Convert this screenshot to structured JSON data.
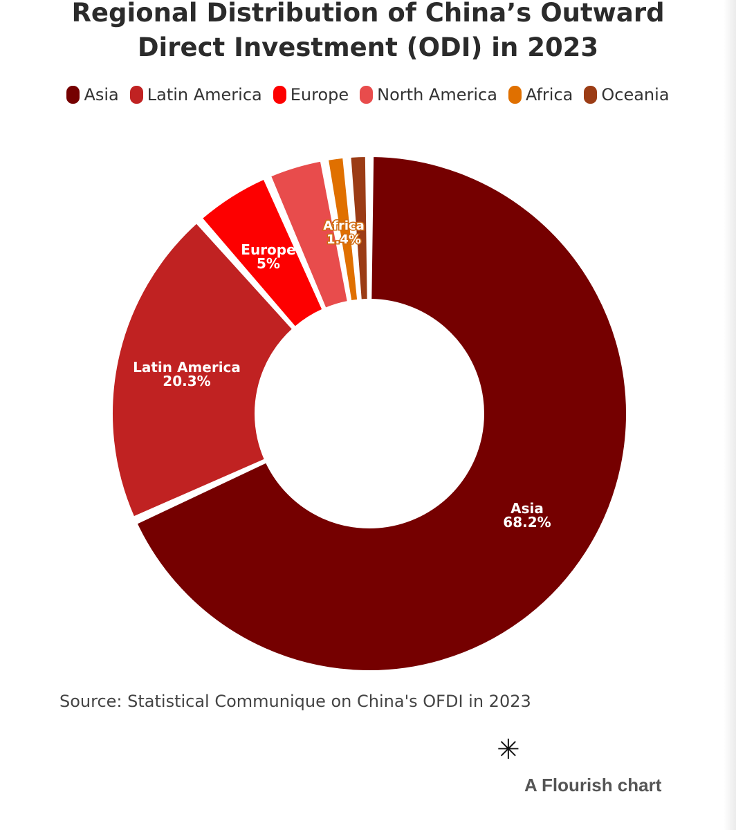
{
  "chart_data": {
    "type": "pie",
    "variant": "donut",
    "title_line1": "Regional Distribution of China’s Outward",
    "title_line2": "Direct Investment (ODI) in 2023",
    "unit": "%",
    "series": [
      {
        "name": "Asia",
        "value": 68.2,
        "label": "68.2%",
        "color": "#750000"
      },
      {
        "name": "Latin America",
        "value": 20.3,
        "label": "20.3%",
        "color": "#c02222"
      },
      {
        "name": "Europe",
        "value": 5,
        "label": "5%",
        "color": "#fd0000"
      },
      {
        "name": "North America",
        "value": 3.7,
        "label": "",
        "color": "#e84c4c"
      },
      {
        "name": "Africa",
        "value": 1.4,
        "label": "1.4%",
        "color": "#e07000"
      },
      {
        "name": "Oceania",
        "value": 1.4,
        "label": "",
        "color": "#9b3c15"
      }
    ],
    "legend_position": "top-center",
    "source": "Source: Statistical Communique on China's OFDI in 2023"
  },
  "footer": {
    "logo_glyph": "✳",
    "credit": "A Flourish chart"
  }
}
